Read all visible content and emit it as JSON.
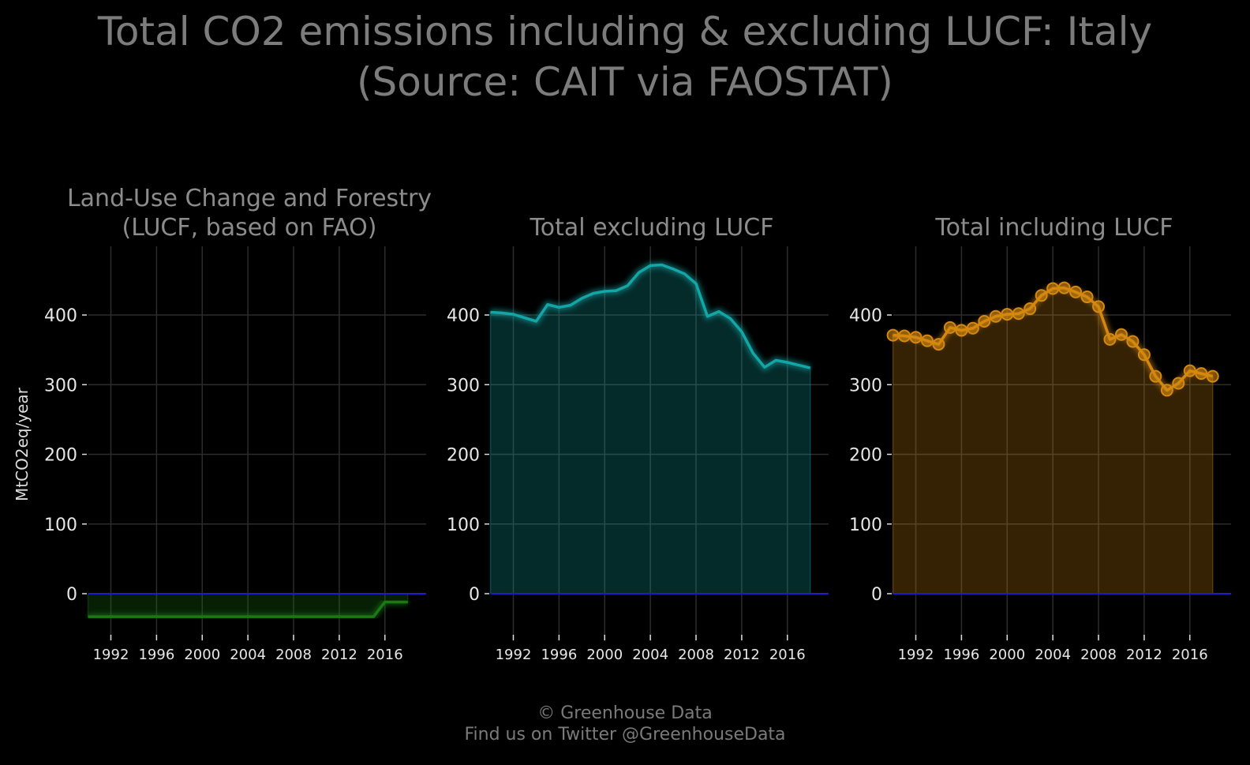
{
  "header": {
    "title_line1": "Total CO2 emissions including & excluding LUCF: Italy",
    "title_line2": "(Source: CAIT via FAOSTAT)"
  },
  "footer": {
    "line1": "© Greenhouse Data",
    "line2": "Find us on Twitter @GreenhouseData"
  },
  "colors": {
    "background": "#000000",
    "lucf": "#1a7a12",
    "excluding": "#12a6a6",
    "including": "#d4880f",
    "zero_line": "#1c1ccc",
    "grid": "#2c2c2c"
  },
  "chart_data": [
    {
      "type": "area",
      "title": [
        "Land-Use Change and Forestry",
        "(LUCF, based on FAO)"
      ],
      "ylabel": "MtCO2eq/year",
      "xlim": [
        1990,
        2019
      ],
      "ylim": [
        -50,
        500
      ],
      "xticks": [
        1992,
        1996,
        2000,
        2004,
        2008,
        2012,
        2016
      ],
      "yticks": [
        0,
        100,
        200,
        300,
        400
      ],
      "grid": true,
      "markers": false,
      "color": "lucf",
      "x": [
        1990,
        1991,
        1992,
        1993,
        1994,
        1995,
        1996,
        1997,
        1998,
        1999,
        2000,
        2001,
        2002,
        2003,
        2004,
        2005,
        2006,
        2007,
        2008,
        2009,
        2010,
        2011,
        2012,
        2013,
        2014,
        2015,
        2016,
        2017,
        2018
      ],
      "y": [
        -33,
        -33,
        -33,
        -33,
        -33,
        -33,
        -33,
        -33,
        -33,
        -33,
        -33,
        -33,
        -33,
        -33,
        -33,
        -33,
        -33,
        -33,
        -33,
        -33,
        -33,
        -33,
        -33,
        -33,
        -33,
        -33,
        -12,
        -12,
        -12
      ]
    },
    {
      "type": "area",
      "title": [
        "Total excluding LUCF"
      ],
      "ylabel": "",
      "xlim": [
        1990,
        2019
      ],
      "ylim": [
        -50,
        500
      ],
      "xticks": [
        1992,
        1996,
        2000,
        2004,
        2008,
        2012,
        2016
      ],
      "yticks": [
        0,
        100,
        200,
        300,
        400
      ],
      "grid": true,
      "markers": false,
      "color": "excluding",
      "x": [
        1990,
        1991,
        1992,
        1993,
        1994,
        1995,
        1996,
        1997,
        1998,
        1999,
        2000,
        2001,
        2002,
        2003,
        2004,
        2005,
        2006,
        2007,
        2008,
        2009,
        2010,
        2011,
        2012,
        2013,
        2014,
        2015,
        2016,
        2017,
        2018
      ],
      "y": [
        404,
        403,
        401,
        396,
        391,
        415,
        411,
        414,
        424,
        431,
        434,
        435,
        442,
        461,
        471,
        472,
        466,
        459,
        445,
        398,
        405,
        395,
        376,
        345,
        325,
        335,
        332,
        328,
        324
      ]
    },
    {
      "type": "area",
      "title": [
        "Total including LUCF"
      ],
      "ylabel": "",
      "xlim": [
        1990,
        2019
      ],
      "ylim": [
        -50,
        500
      ],
      "xticks": [
        1992,
        1996,
        2000,
        2004,
        2008,
        2012,
        2016
      ],
      "yticks": [
        0,
        100,
        200,
        300,
        400
      ],
      "grid": true,
      "markers": true,
      "color": "including",
      "x": [
        1990,
        1991,
        1992,
        1993,
        1994,
        1995,
        1996,
        1997,
        1998,
        1999,
        2000,
        2001,
        2002,
        2003,
        2004,
        2005,
        2006,
        2007,
        2008,
        2009,
        2010,
        2011,
        2012,
        2013,
        2014,
        2015,
        2016,
        2017,
        2018
      ],
      "y": [
        371,
        370,
        368,
        363,
        358,
        382,
        378,
        381,
        391,
        398,
        401,
        402,
        409,
        428,
        438,
        439,
        433,
        426,
        412,
        365,
        372,
        362,
        343,
        312,
        292,
        302,
        320,
        316,
        312
      ]
    }
  ]
}
